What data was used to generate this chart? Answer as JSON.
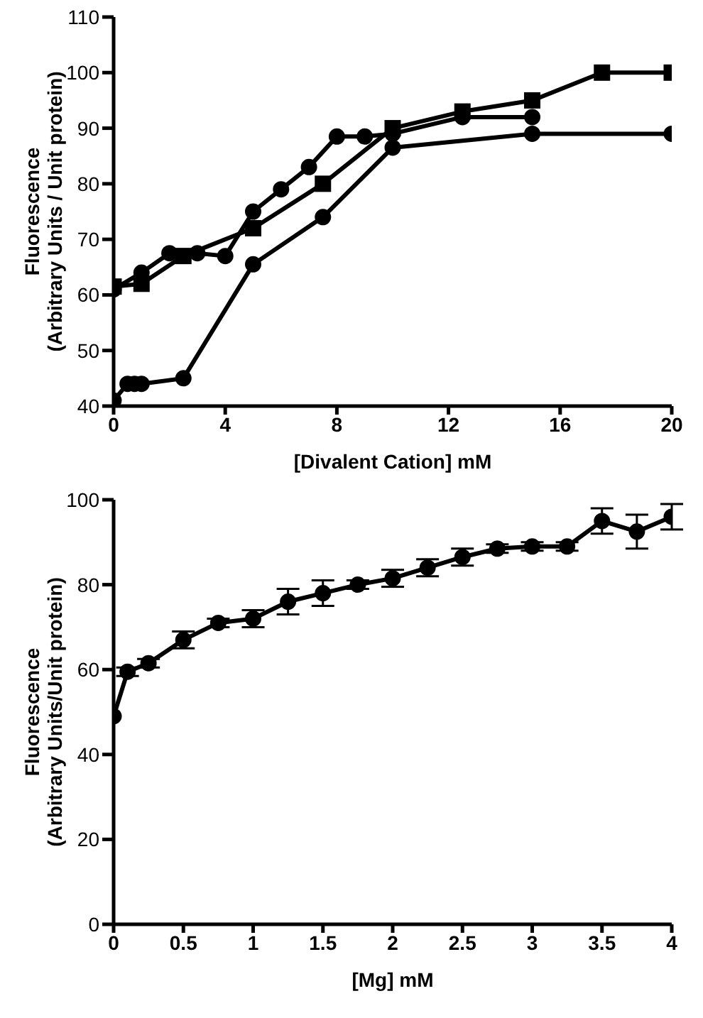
{
  "chart_data": [
    {
      "type": "line",
      "xlabel": "[Divalent Cation] mM",
      "ylabel": "Fluorescence\n(Arbitrary Units / Unit protein)",
      "xlim": [
        0,
        20
      ],
      "xticks": [
        0,
        4,
        8,
        12,
        16,
        20
      ],
      "ylim": [
        40,
        110
      ],
      "yticks": [
        40,
        50,
        60,
        70,
        80,
        90,
        100,
        110
      ],
      "line_style": "solid",
      "series": [
        {
          "color": "#000000",
          "marker": "circle",
          "x": [
            0,
            1,
            2,
            3,
            4,
            5,
            6,
            7,
            8,
            9,
            10,
            12.5,
            15
          ],
          "values": [
            61,
            64,
            67.5,
            67.5,
            67,
            75,
            79,
            83,
            88.5,
            88.5,
            89,
            92,
            92
          ]
        },
        {
          "color": "#000000",
          "marker": "square",
          "x": [
            0,
            1,
            2.5,
            5,
            7.5,
            10,
            12.5,
            15,
            17.5,
            20
          ],
          "values": [
            61.5,
            62,
            67,
            72,
            80,
            90,
            93,
            95,
            100,
            100
          ]
        },
        {
          "color": "#000000",
          "marker": "circle",
          "x": [
            0,
            0.5,
            0.75,
            1,
            2.5,
            5,
            7.5,
            10,
            15,
            20
          ],
          "values": [
            41,
            44,
            44,
            44,
            45,
            65.5,
            74,
            86.5,
            89,
            89
          ]
        }
      ]
    },
    {
      "type": "line",
      "xlabel": "[Mg] mM",
      "ylabel": "Fluorescence\n(Arbitrary Units/Unit protein)",
      "xlim": [
        0,
        4
      ],
      "xticks": [
        0,
        0.5,
        1,
        1.5,
        2,
        2.5,
        3,
        3.5,
        4
      ],
      "ylim": [
        0,
        100
      ],
      "yticks": [
        0,
        20,
        40,
        60,
        80,
        100
      ],
      "line_style": "solid",
      "series": [
        {
          "color": "#000000",
          "marker": "circle",
          "x": [
            0,
            0.1,
            0.25,
            0.5,
            0.75,
            1,
            1.25,
            1.5,
            1.75,
            2,
            2.25,
            2.5,
            2.75,
            3,
            3.25,
            3.5,
            3.75,
            4
          ],
          "values": [
            49,
            59.5,
            61.5,
            67,
            71,
            72,
            76,
            78,
            80,
            81.5,
            84,
            86.5,
            88.5,
            89,
            89,
            95,
            92.5,
            96
          ],
          "errors": [
            null,
            1,
            1,
            2,
            1,
            2,
            3,
            3,
            1,
            2,
            2,
            2,
            1,
            1,
            1,
            3,
            4,
            3
          ]
        }
      ]
    }
  ]
}
